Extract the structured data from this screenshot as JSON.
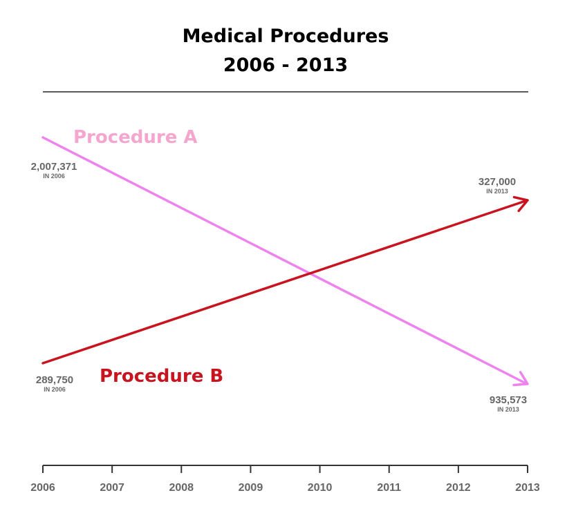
{
  "chart_data": {
    "type": "line",
    "title": [
      "Medical Procedures",
      "2006 - 2013"
    ],
    "x": [
      "2006",
      "2007",
      "2008",
      "2009",
      "2010",
      "2011",
      "2012",
      "2013"
    ],
    "xlim": [
      "2006",
      "2013"
    ],
    "grid": false,
    "series": [
      {
        "name": "Procedure A",
        "color": "#ee82ee",
        "label_color": "#f4a6cf",
        "trend": "decreasing",
        "points": [
          {
            "x": "2006",
            "y": 2007371,
            "label": "2,007,371",
            "sublabel": "IN 2006"
          },
          {
            "x": "2013",
            "y": 935573,
            "label": "935,573",
            "sublabel": "IN 2013"
          }
        ]
      },
      {
        "name": "Procedure B",
        "color": "#c8141e",
        "label_color": "#c8141e",
        "trend": "increasing",
        "points": [
          {
            "x": "2006",
            "y": 289750,
            "label": "289,750",
            "sublabel": "IN 2006"
          },
          {
            "x": "2013",
            "y": 327000,
            "label": "327,000",
            "sublabel": "IN 2013"
          }
        ]
      }
    ]
  }
}
